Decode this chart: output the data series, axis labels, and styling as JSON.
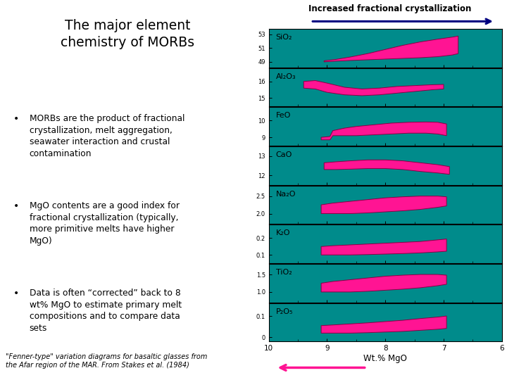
{
  "title": "The major element\nchemistry of MORBs",
  "bullet_points": [
    "MORBs are the product of fractional\ncrystallization, melt aggregation,\nseawater interaction and crustal\ncontamination",
    "MgO contents are a good index for\nfractional crystallization (typically,\nmore primitive melts have higher\nMgO)",
    "Data is often “corrected” back to 8\nwt% MgO to estimate primary melt\ncompositions and to compare data\nsets"
  ],
  "footnote": "\"Fenner-type\" variation diagrams for basaltic glasses from\nthe Afar region of the MAR. From Stakes et al. (1984)",
  "arrow_label": "Increased fractional crystallization",
  "xlabel": "Wt.% MgO",
  "bg_color": "#008B8B",
  "fill_color": "#FF1493",
  "edge_color": "#880044",
  "panel_labels": [
    "SiO₂",
    "Al₂O₃",
    "FeO",
    "CaO",
    "Na₂O",
    "K₂O",
    "TiO₂",
    "P₂O₅"
  ],
  "xticks": [
    10,
    9,
    8,
    7,
    6
  ],
  "panels": [
    {
      "yticks": [
        49,
        51,
        53
      ],
      "ymin": 48.2,
      "ymax": 53.8
    },
    {
      "yticks": [
        15,
        16
      ],
      "ymin": 14.5,
      "ymax": 16.8
    },
    {
      "yticks": [
        9,
        10
      ],
      "ymin": 8.5,
      "ymax": 10.8
    },
    {
      "yticks": [
        12,
        13
      ],
      "ymin": 11.5,
      "ymax": 13.5
    },
    {
      "yticks": [
        2.0,
        2.5
      ],
      "ymin": 1.7,
      "ymax": 2.8
    },
    {
      "yticks": [
        0.1,
        0.2
      ],
      "ymin": 0.05,
      "ymax": 0.28
    },
    {
      "yticks": [
        1.0,
        1.5
      ],
      "ymin": 0.7,
      "ymax": 1.8
    },
    {
      "yticks": [
        0,
        0.1
      ],
      "ymin": -0.02,
      "ymax": 0.16
    }
  ]
}
